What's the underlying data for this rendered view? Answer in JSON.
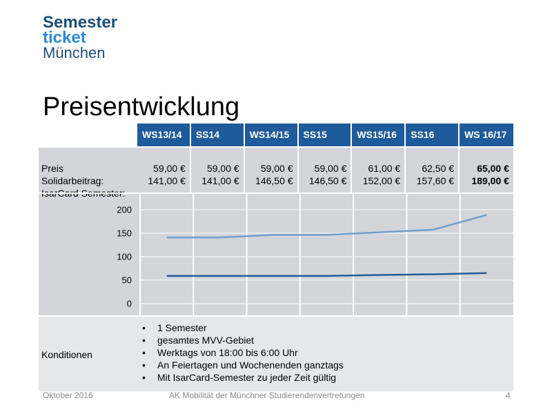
{
  "logo": {
    "line1": "Semester",
    "line2": "ticket",
    "line3": "München"
  },
  "title": "Preisentwicklung",
  "semesters": [
    "WS13/14",
    "SS14",
    "WS14/15",
    "SS15",
    "WS15/16",
    "SS16",
    "WS 16/17"
  ],
  "price_labels": {
    "line1": "Preis",
    "line2": "Solidarbeitrag:",
    "line3": "IsarCard Semester:"
  },
  "prices": [
    {
      "soli": "59,00 €",
      "isar": "141,00 €"
    },
    {
      "soli": "59,00 €",
      "isar": "141,00 €"
    },
    {
      "soli": "59,00 €",
      "isar": "146,50 €"
    },
    {
      "soli": "59,00 €",
      "isar": "146,50 €"
    },
    {
      "soli": "61,00 €",
      "isar": "152,00 €"
    },
    {
      "soli": "62,50 €",
      "isar": "157,60 €"
    },
    {
      "soli": "65,00 €",
      "isar": "189,00 €"
    }
  ],
  "chart_data": {
    "type": "line",
    "categories": [
      "WS13/14",
      "SS14",
      "WS14/15",
      "SS15",
      "WS15/16",
      "SS16",
      "WS 16/17"
    ],
    "series": [
      {
        "values": [
          141.0,
          141.0,
          146.5,
          146.5,
          152.0,
          157.6,
          189.0
        ],
        "color": "#6fa0cf"
      },
      {
        "values": [
          59.0,
          59.0,
          59.0,
          59.0,
          61.0,
          62.5,
          65.0
        ],
        "color": "#1f5b9a"
      }
    ],
    "yticks": [
      0,
      50,
      100,
      150,
      200
    ],
    "ylim": [
      0,
      200
    ],
    "grid": true
  },
  "conditions": {
    "label": "Konditionen",
    "items": [
      "1 Semester",
      "gesamtes MVV-Gebiet",
      "Werktags von 18:00 bis 6:00 Uhr",
      "An Feiertagen und Wochenenden ganztags",
      "Mit IsarCard-Semester zu jeder Zeit gültig"
    ]
  },
  "footer": {
    "date": "Oktober 2016",
    "org": "AK Mobilität der Münchner  Studierendenvertretungen",
    "page": "4"
  }
}
